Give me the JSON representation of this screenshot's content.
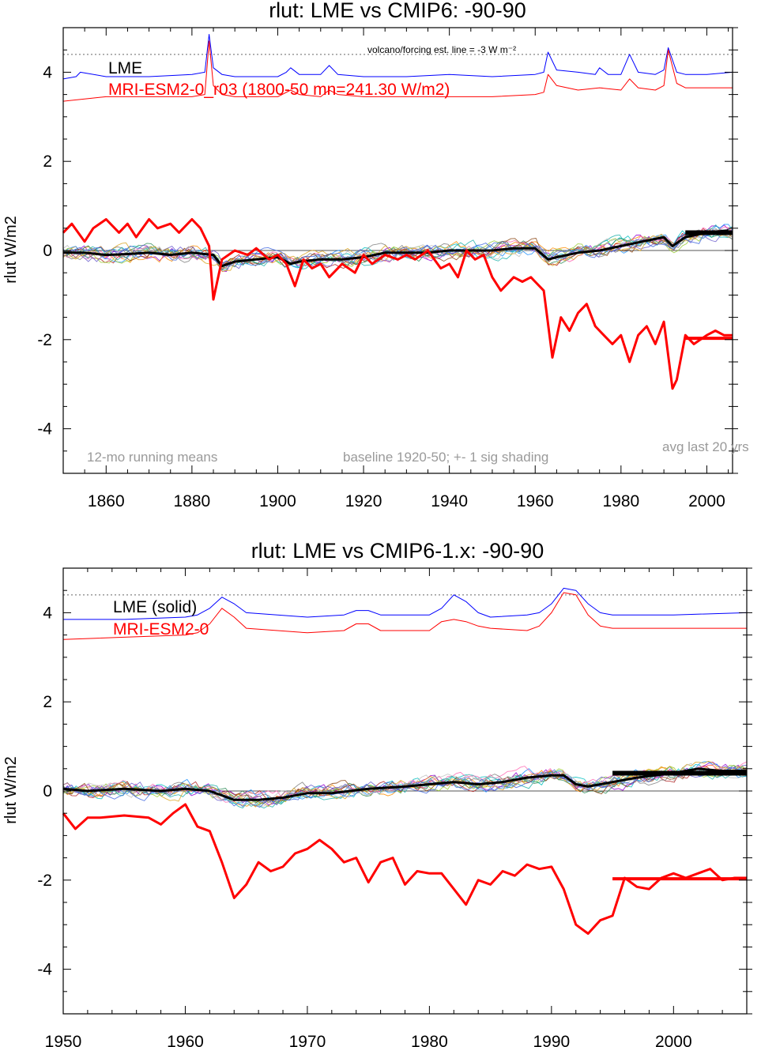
{
  "chart_data": [
    {
      "type": "line",
      "title": "rlut: LME vs CMIP6: -90-90",
      "ylabel": "rlut W/m2",
      "xlim": [
        1850,
        2006
      ],
      "ylim": [
        -5,
        5
      ],
      "xticks": [
        1860,
        1880,
        1900,
        1920,
        1940,
        1960,
        1980,
        2000
      ],
      "yticks": [
        -4,
        -2,
        0,
        2,
        4
      ],
      "dotted_ref": 4.4,
      "legend": [
        "LME",
        "MRI-ESM2-0_r03 (1800-50 mn=241.30 W/m2)"
      ],
      "annotations": [
        "volcano/forcing est.      line = -3 W m⁻²",
        "12-mo running means",
        "baseline 1920-50; +- 1 sig shading",
        "avg last 20 yrs"
      ],
      "colors": {
        "lme": "#000000",
        "model": "#ff0000",
        "forcing_lme": "#0000ff",
        "forcing_model": "#ff0000"
      },
      "avg_last_20": {
        "lme": 0.4,
        "model": -1.97,
        "from": 1995,
        "to": 2006
      },
      "series": [
        {
          "name": "LME",
          "color": "#000000",
          "x": [
            1850,
            1855,
            1860,
            1865,
            1870,
            1875,
            1880,
            1885,
            1887,
            1890,
            1895,
            1900,
            1903,
            1905,
            1910,
            1915,
            1920,
            1925,
            1930,
            1935,
            1940,
            1945,
            1950,
            1955,
            1960,
            1963,
            1965,
            1970,
            1975,
            1980,
            1985,
            1990,
            1992,
            1995,
            2000,
            2005
          ],
          "y": [
            -0.05,
            -0.05,
            -0.1,
            -0.08,
            -0.05,
            -0.1,
            -0.05,
            -0.1,
            -0.35,
            -0.25,
            -0.2,
            -0.15,
            -0.3,
            -0.25,
            -0.2,
            -0.2,
            -0.15,
            -0.05,
            -0.05,
            -0.05,
            0.0,
            0.0,
            0.0,
            0.05,
            0.05,
            -0.2,
            -0.15,
            -0.05,
            0.0,
            0.1,
            0.2,
            0.3,
            0.1,
            0.3,
            0.4,
            0.45
          ]
        },
        {
          "name": "MRI-ESM2-0_r03 (1800-50 mn=241.30 W/m2)",
          "color": "#ff0000",
          "x": [
            1850,
            1852,
            1855,
            1857,
            1860,
            1863,
            1865,
            1867,
            1870,
            1872,
            1875,
            1877,
            1880,
            1882,
            1884,
            1885,
            1887,
            1890,
            1893,
            1895,
            1898,
            1900,
            1902,
            1904,
            1906,
            1908,
            1910,
            1912,
            1915,
            1918,
            1920,
            1922,
            1925,
            1928,
            1930,
            1932,
            1935,
            1938,
            1940,
            1942,
            1944,
            1946,
            1948,
            1950,
            1952,
            1955,
            1957,
            1959,
            1960,
            1962,
            1964,
            1966,
            1968,
            1970,
            1972,
            1974,
            1976,
            1978,
            1980,
            1982,
            1984,
            1986,
            1988,
            1990,
            1992,
            1993,
            1995,
            1997,
            2000,
            2002,
            2004,
            2006
          ],
          "y": [
            0.4,
            0.6,
            0.2,
            0.5,
            0.7,
            0.4,
            0.6,
            0.3,
            0.7,
            0.5,
            0.6,
            0.4,
            0.7,
            0.5,
            0.1,
            -1.1,
            -0.2,
            0.0,
            -0.1,
            0.05,
            -0.2,
            -0.1,
            -0.3,
            -0.8,
            -0.2,
            -0.4,
            -0.3,
            -0.6,
            -0.3,
            -0.5,
            -0.1,
            -0.3,
            -0.1,
            -0.2,
            -0.1,
            -0.2,
            0.0,
            -0.4,
            -0.3,
            -0.6,
            0.0,
            -0.2,
            -0.1,
            -0.6,
            -0.9,
            -0.6,
            -0.7,
            -0.6,
            -0.7,
            -0.9,
            -2.4,
            -1.5,
            -1.8,
            -1.4,
            -1.2,
            -1.7,
            -1.9,
            -2.1,
            -1.9,
            -2.5,
            -1.9,
            -1.7,
            -2.1,
            -1.6,
            -3.1,
            -2.9,
            -1.9,
            -2.1,
            -1.9,
            -1.8,
            -1.9,
            -1.9
          ]
        },
        {
          "name": "",
          "color": "#0000ff",
          "x": [
            1850,
            1853,
            1854,
            1860,
            1870,
            1880,
            1883,
            1884,
            1885,
            1887,
            1890,
            1900,
            1902,
            1903,
            1905,
            1910,
            1912,
            1914,
            1920,
            1930,
            1940,
            1950,
            1960,
            1962,
            1963,
            1965,
            1970,
            1974,
            1975,
            1977,
            1980,
            1982,
            1984,
            1988,
            1990,
            1991,
            1993,
            1995,
            2000,
            2006
          ],
          "y": [
            3.85,
            3.9,
            4.0,
            3.9,
            3.9,
            3.95,
            4.0,
            4.85,
            4.1,
            3.95,
            3.9,
            3.9,
            4.0,
            4.1,
            3.95,
            3.95,
            4.15,
            3.95,
            3.9,
            3.9,
            3.95,
            3.9,
            3.95,
            4.0,
            4.45,
            4.05,
            4.0,
            3.95,
            4.1,
            3.95,
            3.95,
            4.4,
            4.0,
            3.95,
            4.05,
            4.55,
            4.0,
            3.95,
            3.95,
            4.0
          ]
        },
        {
          "name": "",
          "color": "#ff0000",
          "x": [
            1850,
            1855,
            1860,
            1870,
            1880,
            1883,
            1884,
            1885,
            1887,
            1890,
            1900,
            1903,
            1905,
            1910,
            1912,
            1914,
            1920,
            1930,
            1940,
            1950,
            1960,
            1962,
            1963,
            1965,
            1970,
            1975,
            1980,
            1982,
            1984,
            1988,
            1990,
            1991,
            1993,
            1995,
            2000,
            2006
          ],
          "y": [
            3.35,
            3.4,
            3.45,
            3.45,
            3.45,
            3.5,
            4.7,
            3.7,
            3.5,
            3.45,
            3.45,
            3.6,
            3.5,
            3.45,
            3.6,
            3.5,
            3.45,
            3.45,
            3.45,
            3.45,
            3.5,
            3.55,
            3.95,
            3.7,
            3.6,
            3.65,
            3.6,
            3.85,
            3.65,
            3.6,
            3.7,
            4.5,
            3.75,
            3.65,
            3.65,
            3.65
          ]
        }
      ]
    },
    {
      "type": "line",
      "title": "rlut: LME vs CMIP6-1.x: -90-90",
      "ylabel": "rlut W/m2",
      "xlim": [
        1950,
        2006
      ],
      "ylim": [
        -5,
        5
      ],
      "xticks": [
        1950,
        1960,
        1970,
        1980,
        1990,
        2000
      ],
      "yticks": [
        -4,
        -2,
        0,
        2,
        4
      ],
      "dotted_ref": 4.4,
      "legend": [
        "LME (solid)",
        "MRI-ESM2-0"
      ],
      "colors": {
        "lme": "#000000",
        "model": "#ff0000",
        "forcing_lme": "#0000ff",
        "forcing_model": "#ff0000"
      },
      "avg_last_20": {
        "lme": 0.4,
        "model": -1.97,
        "from": 1995,
        "to": 2006
      },
      "series": [
        {
          "name": "LME (solid)",
          "color": "#000000",
          "x": [
            1950,
            1952,
            1955,
            1958,
            1960,
            1962,
            1963,
            1964,
            1966,
            1968,
            1970,
            1972,
            1975,
            1978,
            1980,
            1982,
            1984,
            1986,
            1988,
            1990,
            1991,
            1992,
            1993,
            1995,
            1997,
            2000,
            2002,
            2004,
            2006
          ],
          "y": [
            0.05,
            0.0,
            0.05,
            0.0,
            0.05,
            0.0,
            -0.1,
            -0.2,
            -0.2,
            -0.15,
            -0.05,
            -0.05,
            0.05,
            0.1,
            0.15,
            0.2,
            0.15,
            0.2,
            0.3,
            0.35,
            0.35,
            0.15,
            0.1,
            0.2,
            0.3,
            0.4,
            0.5,
            0.45,
            0.45
          ]
        },
        {
          "name": "MRI-ESM2-0",
          "color": "#ff0000",
          "x": [
            1950,
            1951,
            1952,
            1953,
            1955,
            1957,
            1958,
            1959,
            1960,
            1961,
            1962,
            1963,
            1964,
            1965,
            1966,
            1967,
            1968,
            1969,
            1970,
            1971,
            1972,
            1973,
            1974,
            1975,
            1976,
            1977,
            1978,
            1979,
            1980,
            1981,
            1982,
            1983,
            1984,
            1985,
            1986,
            1987,
            1988,
            1989,
            1990,
            1991,
            1992,
            1993,
            1994,
            1995,
            1996,
            1997,
            1998,
            1999,
            2000,
            2001,
            2002,
            2003,
            2004,
            2005,
            2006
          ],
          "y": [
            -0.5,
            -0.85,
            -0.6,
            -0.6,
            -0.55,
            -0.6,
            -0.75,
            -0.5,
            -0.3,
            -0.8,
            -0.9,
            -1.6,
            -2.4,
            -2.1,
            -1.6,
            -1.8,
            -1.7,
            -1.4,
            -1.3,
            -1.1,
            -1.3,
            -1.6,
            -1.5,
            -2.05,
            -1.6,
            -1.5,
            -2.1,
            -1.8,
            -1.85,
            -1.85,
            -2.2,
            -2.55,
            -2.0,
            -2.1,
            -1.8,
            -1.9,
            -1.65,
            -1.75,
            -1.7,
            -2.2,
            -3.0,
            -3.2,
            -2.9,
            -2.8,
            -1.95,
            -2.15,
            -2.2,
            -1.95,
            -1.85,
            -1.95,
            -1.85,
            -1.75,
            -2.0,
            -1.95,
            -1.95
          ]
        },
        {
          "name": "",
          "color": "#0000ff",
          "x": [
            1950,
            1955,
            1960,
            1961,
            1962,
            1963,
            1964,
            1965,
            1970,
            1973,
            1974,
            1975,
            1976,
            1980,
            1981,
            1982,
            1983,
            1984,
            1985,
            1988,
            1989,
            1990,
            1991,
            1992,
            1993,
            1994,
            1995,
            2000,
            2006
          ],
          "y": [
            3.85,
            3.85,
            3.9,
            3.95,
            4.1,
            4.35,
            4.2,
            4.0,
            3.9,
            3.95,
            4.05,
            4.05,
            3.95,
            3.95,
            4.1,
            4.4,
            4.25,
            4.0,
            3.9,
            3.95,
            4.0,
            4.2,
            4.55,
            4.5,
            4.2,
            4.0,
            3.95,
            3.95,
            4.0
          ]
        },
        {
          "name": "",
          "color": "#ff0000",
          "x": [
            1950,
            1955,
            1960,
            1961,
            1962,
            1963,
            1964,
            1965,
            1970,
            1973,
            1974,
            1975,
            1976,
            1980,
            1981,
            1982,
            1983,
            1984,
            1985,
            1988,
            1989,
            1990,
            1991,
            1992,
            1993,
            1994,
            1995,
            2000,
            2006
          ],
          "y": [
            3.4,
            3.45,
            3.5,
            3.55,
            3.75,
            4.1,
            3.9,
            3.65,
            3.55,
            3.6,
            3.75,
            3.75,
            3.6,
            3.6,
            3.8,
            3.85,
            3.8,
            3.7,
            3.65,
            3.6,
            3.7,
            4.0,
            4.45,
            4.4,
            3.95,
            3.7,
            3.65,
            3.65,
            3.65
          ]
        }
      ]
    }
  ]
}
